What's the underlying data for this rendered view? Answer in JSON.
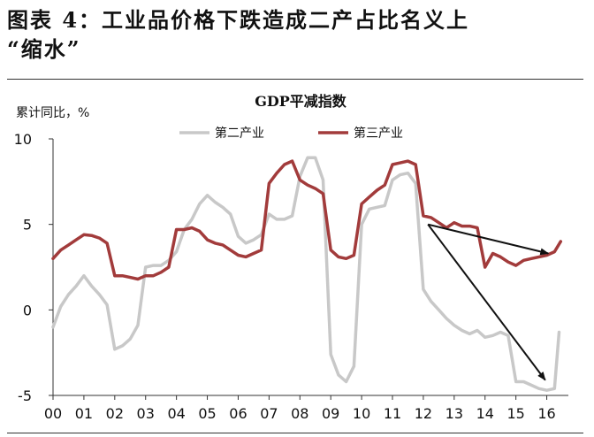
{
  "figure": {
    "title_line1": "图表 4：工业品价格下跌造成二产占比名义上",
    "title_line2": "“缩水”"
  },
  "chart_data": {
    "type": "line",
    "title": "GDP平减指数",
    "ylabel": "累计同比，%",
    "ylim": [
      -5,
      10
    ],
    "yticks": [
      -5,
      0,
      5,
      10
    ],
    "xlim": [
      2000,
      2016.7
    ],
    "xticks": [
      {
        "label": "00",
        "x": 2000
      },
      {
        "label": "01",
        "x": 2001
      },
      {
        "label": "02",
        "x": 2002
      },
      {
        "label": "03",
        "x": 2003
      },
      {
        "label": "04",
        "x": 2004
      },
      {
        "label": "05",
        "x": 2005
      },
      {
        "label": "06",
        "x": 2006
      },
      {
        "label": "07",
        "x": 2007
      },
      {
        "label": "08",
        "x": 2008
      },
      {
        "label": "09",
        "x": 2009
      },
      {
        "label": "10",
        "x": 2010
      },
      {
        "label": "11",
        "x": 2011
      },
      {
        "label": "12",
        "x": 2012
      },
      {
        "label": "13",
        "x": 2013
      },
      {
        "label": "14",
        "x": 2014
      },
      {
        "label": "15",
        "x": 2015
      },
      {
        "label": "16",
        "x": 2016
      }
    ],
    "legend_position": "top",
    "grid": false,
    "series": [
      {
        "name": "第二产业",
        "color": "#c8c8c8",
        "points": [
          [
            2000.0,
            -1.0
          ],
          [
            2000.25,
            0.2
          ],
          [
            2000.5,
            0.9
          ],
          [
            2000.75,
            1.4
          ],
          [
            2001.0,
            2.0
          ],
          [
            2001.25,
            1.4
          ],
          [
            2001.5,
            0.9
          ],
          [
            2001.75,
            0.3
          ],
          [
            2002.0,
            -2.3
          ],
          [
            2002.25,
            -2.1
          ],
          [
            2002.5,
            -1.7
          ],
          [
            2002.75,
            -0.9
          ],
          [
            2003.0,
            2.5
          ],
          [
            2003.25,
            2.6
          ],
          [
            2003.5,
            2.6
          ],
          [
            2003.75,
            2.9
          ],
          [
            2004.0,
            3.4
          ],
          [
            2004.25,
            4.7
          ],
          [
            2004.5,
            5.3
          ],
          [
            2004.75,
            6.2
          ],
          [
            2005.0,
            6.7
          ],
          [
            2005.25,
            6.3
          ],
          [
            2005.5,
            6.0
          ],
          [
            2005.75,
            5.6
          ],
          [
            2006.0,
            4.3
          ],
          [
            2006.25,
            3.9
          ],
          [
            2006.5,
            4.1
          ],
          [
            2006.75,
            4.4
          ],
          [
            2007.0,
            5.6
          ],
          [
            2007.25,
            5.3
          ],
          [
            2007.5,
            5.3
          ],
          [
            2007.75,
            5.5
          ],
          [
            2008.0,
            7.8
          ],
          [
            2008.25,
            8.9
          ],
          [
            2008.5,
            8.9
          ],
          [
            2008.75,
            7.6
          ],
          [
            2009.0,
            -2.6
          ],
          [
            2009.25,
            -3.8
          ],
          [
            2009.5,
            -4.2
          ],
          [
            2009.75,
            -3.3
          ],
          [
            2010.0,
            5.0
          ],
          [
            2010.25,
            5.9
          ],
          [
            2010.5,
            6.0
          ],
          [
            2010.75,
            6.1
          ],
          [
            2011.0,
            7.6
          ],
          [
            2011.25,
            7.9
          ],
          [
            2011.5,
            8.0
          ],
          [
            2011.75,
            7.4
          ],
          [
            2012.0,
            1.2
          ],
          [
            2012.25,
            0.5
          ],
          [
            2012.5,
            0.0
          ],
          [
            2012.75,
            -0.5
          ],
          [
            2013.0,
            -0.9
          ],
          [
            2013.25,
            -1.2
          ],
          [
            2013.5,
            -1.4
          ],
          [
            2013.75,
            -1.2
          ],
          [
            2014.0,
            -1.6
          ],
          [
            2014.25,
            -1.5
          ],
          [
            2014.5,
            -1.3
          ],
          [
            2014.75,
            -1.5
          ],
          [
            2015.0,
            -4.2
          ],
          [
            2015.25,
            -4.2
          ],
          [
            2015.5,
            -4.4
          ],
          [
            2015.75,
            -4.6
          ],
          [
            2016.0,
            -4.7
          ],
          [
            2016.25,
            -4.6
          ],
          [
            2016.4,
            -1.3
          ]
        ]
      },
      {
        "name": "第三产业",
        "color": "#a23b3b",
        "points": [
          [
            2000.0,
            3.0
          ],
          [
            2000.25,
            3.5
          ],
          [
            2000.5,
            3.8
          ],
          [
            2000.75,
            4.1
          ],
          [
            2001.0,
            4.4
          ],
          [
            2001.25,
            4.35
          ],
          [
            2001.5,
            4.2
          ],
          [
            2001.75,
            3.9
          ],
          [
            2002.0,
            2.0
          ],
          [
            2002.25,
            2.0
          ],
          [
            2002.5,
            1.9
          ],
          [
            2002.75,
            1.8
          ],
          [
            2003.0,
            2.0
          ],
          [
            2003.25,
            2.0
          ],
          [
            2003.5,
            2.2
          ],
          [
            2003.75,
            2.5
          ],
          [
            2004.0,
            4.7
          ],
          [
            2004.25,
            4.7
          ],
          [
            2004.5,
            4.8
          ],
          [
            2004.75,
            4.6
          ],
          [
            2005.0,
            4.1
          ],
          [
            2005.25,
            3.9
          ],
          [
            2005.5,
            3.8
          ],
          [
            2005.75,
            3.5
          ],
          [
            2006.0,
            3.2
          ],
          [
            2006.25,
            3.1
          ],
          [
            2006.5,
            3.3
          ],
          [
            2006.75,
            3.5
          ],
          [
            2007.0,
            7.4
          ],
          [
            2007.25,
            8.0
          ],
          [
            2007.5,
            8.5
          ],
          [
            2007.75,
            8.7
          ],
          [
            2008.0,
            7.6
          ],
          [
            2008.25,
            7.3
          ],
          [
            2008.5,
            7.1
          ],
          [
            2008.75,
            6.8
          ],
          [
            2009.0,
            3.5
          ],
          [
            2009.25,
            3.1
          ],
          [
            2009.5,
            3.0
          ],
          [
            2009.75,
            3.2
          ],
          [
            2010.0,
            6.2
          ],
          [
            2010.25,
            6.6
          ],
          [
            2010.5,
            7.0
          ],
          [
            2010.75,
            7.3
          ],
          [
            2011.0,
            8.5
          ],
          [
            2011.25,
            8.6
          ],
          [
            2011.5,
            8.7
          ],
          [
            2011.75,
            8.5
          ],
          [
            2012.0,
            5.5
          ],
          [
            2012.25,
            5.4
          ],
          [
            2012.5,
            5.1
          ],
          [
            2012.75,
            4.8
          ],
          [
            2013.0,
            5.1
          ],
          [
            2013.25,
            4.9
          ],
          [
            2013.5,
            4.9
          ],
          [
            2013.75,
            4.8
          ],
          [
            2014.0,
            2.5
          ],
          [
            2014.25,
            3.3
          ],
          [
            2014.5,
            3.1
          ],
          [
            2014.75,
            2.8
          ],
          [
            2015.0,
            2.6
          ],
          [
            2015.25,
            2.9
          ],
          [
            2015.5,
            3.0
          ],
          [
            2015.75,
            3.1
          ],
          [
            2016.0,
            3.2
          ],
          [
            2016.25,
            3.4
          ],
          [
            2016.45,
            4.0
          ]
        ]
      }
    ],
    "annotations": [
      {
        "type": "arrow",
        "color": "#111111",
        "from": [
          2012.15,
          5.0
        ],
        "to": [
          2016.05,
          3.3
        ]
      },
      {
        "type": "arrow",
        "color": "#111111",
        "from": [
          2012.15,
          5.0
        ],
        "to": [
          2015.95,
          -4.1
        ]
      }
    ]
  }
}
